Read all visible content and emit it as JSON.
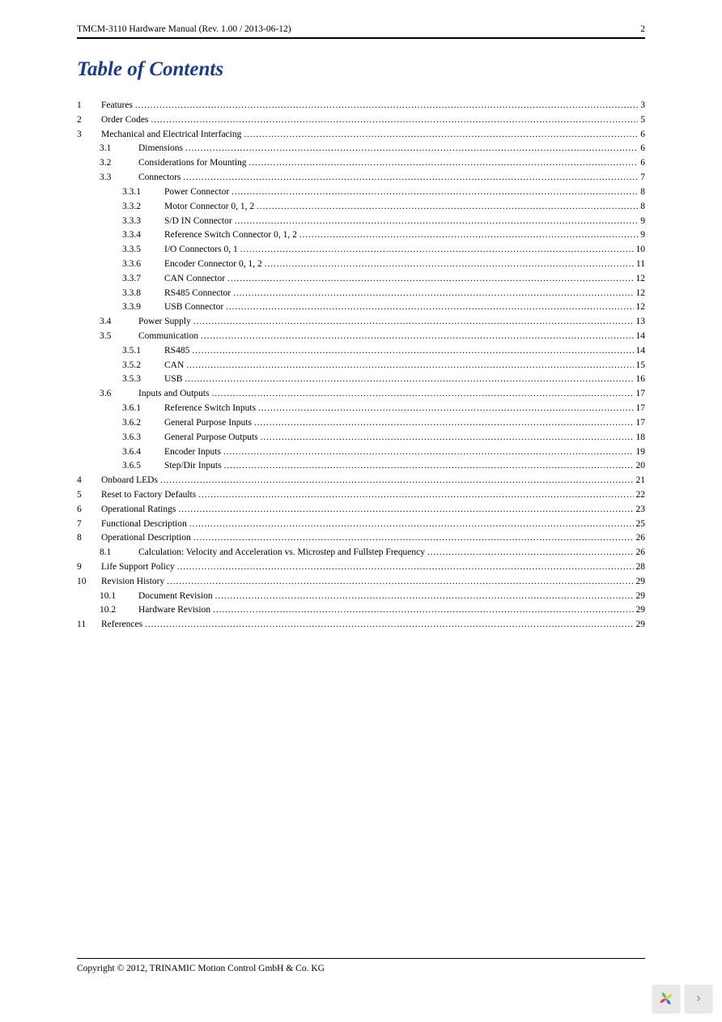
{
  "header": {
    "title": "TMCM-3110 Hardware Manual (Rev. 1.00 / 2013-06-12)",
    "pageno": "2"
  },
  "toc_title": "Table of Contents",
  "toc": [
    {
      "level": 1,
      "num": "1",
      "label": "Features",
      "page": "3"
    },
    {
      "level": 1,
      "num": "2",
      "label": "Order Codes",
      "page": "5"
    },
    {
      "level": 1,
      "num": "3",
      "label": "Mechanical and Electrical Interfacing",
      "page": "6"
    },
    {
      "level": 2,
      "num": "3.1",
      "label": "Dimensions",
      "page": "6"
    },
    {
      "level": 2,
      "num": "3.2",
      "label": "Considerations for Mounting",
      "page": "6"
    },
    {
      "level": 2,
      "num": "3.3",
      "label": "Connectors",
      "page": "7"
    },
    {
      "level": 3,
      "num": "3.3.1",
      "label": "Power Connector",
      "page": "8"
    },
    {
      "level": 3,
      "num": "3.3.2",
      "label": "Motor Connector 0, 1, 2",
      "page": "8"
    },
    {
      "level": 3,
      "num": "3.3.3",
      "label": "S/D IN Connector",
      "page": "9"
    },
    {
      "level": 3,
      "num": "3.3.4",
      "label": "Reference Switch Connector 0, 1, 2",
      "page": "9"
    },
    {
      "level": 3,
      "num": "3.3.5",
      "label": "I/O Connectors 0, 1",
      "page": "10"
    },
    {
      "level": 3,
      "num": "3.3.6",
      "label": "Encoder Connector 0, 1, 2",
      "page": "11"
    },
    {
      "level": 3,
      "num": "3.3.7",
      "label": "CAN Connector",
      "page": "12"
    },
    {
      "level": 3,
      "num": "3.3.8",
      "label": "RS485 Connector",
      "page": "12"
    },
    {
      "level": 3,
      "num": "3.3.9",
      "label": "USB Connector",
      "page": "12"
    },
    {
      "level": 2,
      "num": "3.4",
      "label": "Power Supply",
      "page": "13"
    },
    {
      "level": 2,
      "num": "3.5",
      "label": "Communication",
      "page": "14"
    },
    {
      "level": 3,
      "num": "3.5.1",
      "label": "RS485",
      "page": "14"
    },
    {
      "level": 3,
      "num": "3.5.2",
      "label": "CAN",
      "page": "15"
    },
    {
      "level": 3,
      "num": "3.5.3",
      "label": "USB",
      "page": "16"
    },
    {
      "level": 2,
      "num": "3.6",
      "label": "Inputs and Outputs",
      "page": "17"
    },
    {
      "level": 3,
      "num": "3.6.1",
      "label": "Reference Switch Inputs",
      "page": "17"
    },
    {
      "level": 3,
      "num": "3.6.2",
      "label": "General Purpose Inputs",
      "page": "17"
    },
    {
      "level": 3,
      "num": "3.6.3",
      "label": "General Purpose Outputs",
      "page": "18"
    },
    {
      "level": 3,
      "num": "3.6.4",
      "label": "Encoder Inputs",
      "page": "19"
    },
    {
      "level": 3,
      "num": "3.6.5",
      "label": "Step/Dir Inputs",
      "page": "20"
    },
    {
      "level": 1,
      "num": "4",
      "label": "Onboard LEDs",
      "page": "21"
    },
    {
      "level": 1,
      "num": "5",
      "label": "Reset to Factory Defaults",
      "page": "22"
    },
    {
      "level": 1,
      "num": "6",
      "label": "Operational Ratings",
      "page": "23"
    },
    {
      "level": 1,
      "num": "7",
      "label": "Functional Description",
      "page": "25"
    },
    {
      "level": 1,
      "num": "8",
      "label": "Operational Description",
      "page": "26"
    },
    {
      "level": 2,
      "num": "8.1",
      "label": "Calculation: Velocity and Acceleration vs. Microstep and Fullstep Frequency",
      "page": "26"
    },
    {
      "level": 1,
      "num": "9",
      "label": "Life Support Policy",
      "page": "28"
    },
    {
      "level": 1,
      "num": "10",
      "label": "Revision History",
      "page": "29"
    },
    {
      "level": 2,
      "num": "10.1",
      "label": "Document Revision",
      "page": "29"
    },
    {
      "level": 2,
      "num": "10.2",
      "label": "Hardware Revision",
      "page": "29"
    },
    {
      "level": 1,
      "num": "11",
      "label": "References",
      "page": "29"
    }
  ],
  "footer": {
    "copyright": "Copyright © 2012, TRINAMIC Motion Control GmbH & Co. KG"
  },
  "widget": {
    "logo_colors": {
      "petal1": "#5bbf5b",
      "petal2": "#e8c84a",
      "petal3": "#3a7fc4",
      "petal4": "#d9455f"
    },
    "chevron": "›"
  },
  "style": {
    "page_bg": "#ffffff",
    "text_color": "#000000",
    "title_color": "#1a3a8a",
    "body_fontsize": 11.5,
    "title_fontsize": 25
  }
}
